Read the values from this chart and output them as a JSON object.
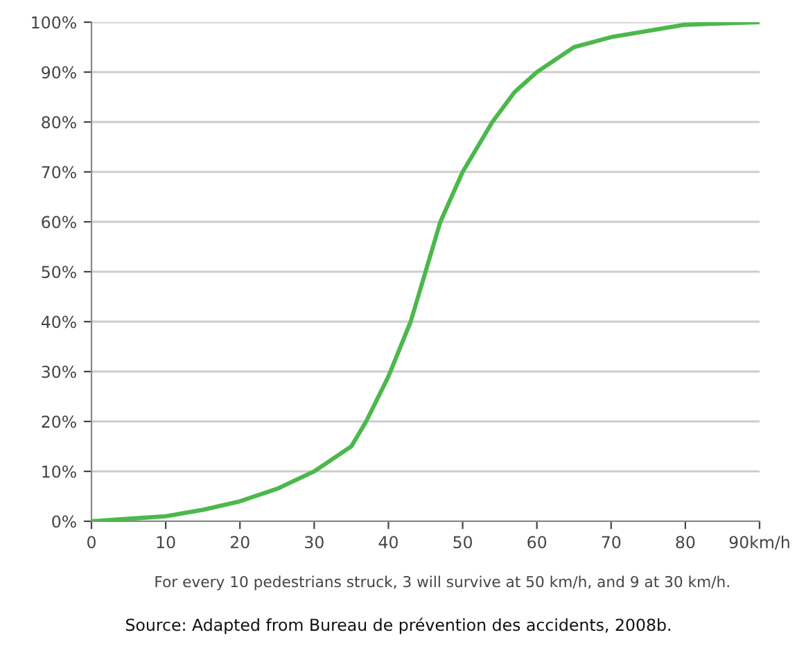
{
  "chart_data": {
    "type": "line",
    "x": [
      0,
      5,
      10,
      15,
      20,
      25,
      30,
      35,
      37,
      40,
      43,
      45,
      47,
      50,
      54,
      57,
      60,
      65,
      70,
      80,
      90
    ],
    "series": [
      {
        "color": "#4cb84c",
        "values": [
          0,
          0.5,
          1,
          2.3,
          4,
          6.5,
          10,
          15,
          20,
          29,
          40,
          50,
          60,
          70,
          80,
          86,
          90,
          95,
          97,
          99.5,
          100
        ]
      }
    ],
    "xlim": [
      0,
      90
    ],
    "xticks": [
      0,
      10,
      20,
      30,
      40,
      50,
      60,
      70,
      80,
      {
        "value": 90,
        "label": "90km/h"
      }
    ],
    "ylim": [
      0,
      100
    ],
    "yticks": [
      {
        "value": 0,
        "label": "0%"
      },
      {
        "value": 10,
        "label": "10%"
      },
      {
        "value": 20,
        "label": "20%"
      },
      {
        "value": 30,
        "label": "30%"
      },
      {
        "value": 40,
        "label": "40%"
      },
      {
        "value": 50,
        "label": "50%"
      },
      {
        "value": 60,
        "label": "60%"
      },
      {
        "value": 70,
        "label": "70%"
      },
      {
        "value": 80,
        "label": "80%"
      },
      {
        "value": 90,
        "label": "90%"
      },
      {
        "value": 100,
        "label": "100%"
      }
    ],
    "grid": "y",
    "marker": "none",
    "line_style": "solid",
    "annotations": [
      "For every 10 pedestrians struck, 3 will survive at 50 km/h, and 9 at 30 km/h.",
      "Source: Adapted from Bureau de prévention des accidents, 2008b."
    ]
  }
}
